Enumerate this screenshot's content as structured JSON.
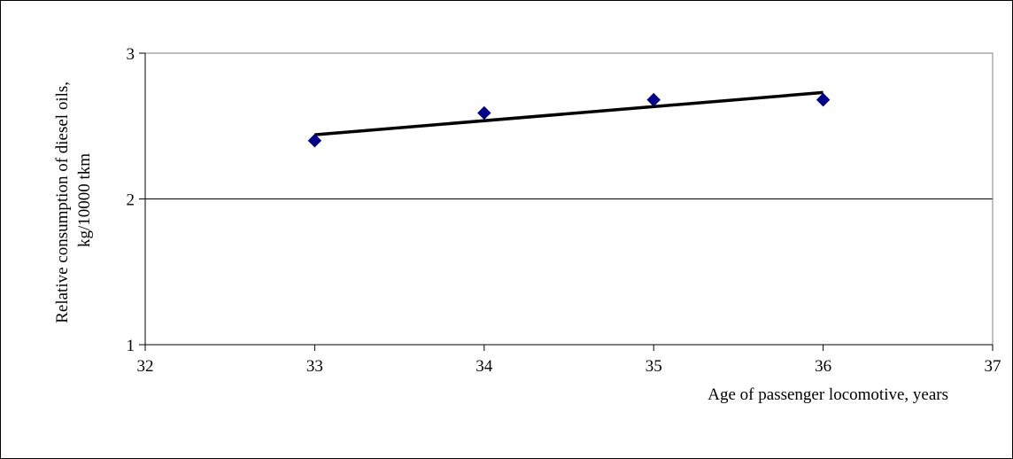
{
  "chart_data": {
    "type": "scatter",
    "xlabel": "Age of passenger locomotive, years",
    "ylabel_lines": [
      "Relative consumption of diesel oils,",
      "kg/10000 tkm"
    ],
    "xlim": [
      32,
      37
    ],
    "ylim": [
      1,
      3
    ],
    "x_ticks": [
      32,
      33,
      34,
      35,
      36,
      37
    ],
    "y_ticks": [
      1,
      2,
      3
    ],
    "grid": {
      "y_major": true,
      "x_major": false
    },
    "points": [
      {
        "x": 33,
        "y": 2.4
      },
      {
        "x": 34,
        "y": 2.59
      },
      {
        "x": 35,
        "y": 2.68
      },
      {
        "x": 36,
        "y": 2.68
      }
    ],
    "trendline": {
      "type": "linear",
      "from": {
        "x": 33,
        "y": 2.44
      },
      "to": {
        "x": 36,
        "y": 2.73
      }
    },
    "colors": {
      "marker": "#00008b",
      "trendline": "#000000",
      "plot_border": "#808080",
      "gridline": "#000000"
    }
  }
}
